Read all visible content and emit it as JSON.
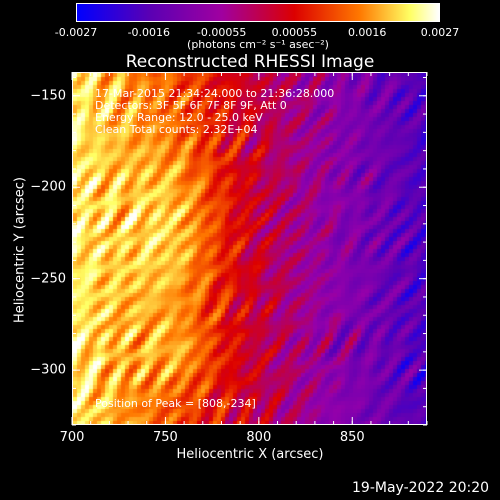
{
  "chart_data": {
    "type": "heatmap",
    "title": "Reconstructed RHESSI Image",
    "xlabel": "Heliocentric X (arcsec)",
    "ylabel": "Heliocentric Y (arcsec)",
    "xlim": [
      700,
      890
    ],
    "ylim": [
      -330,
      -137
    ],
    "xticks": [
      "700",
      "750",
      "800",
      "850"
    ],
    "xtick_values": [
      700,
      750,
      800,
      850
    ],
    "yticks": [
      "-150",
      "-200",
      "-250",
      "-300"
    ],
    "ytick_values": [
      -150,
      -200,
      -250,
      -300
    ],
    "colorbar": {
      "ticks": [
        "-0.0027",
        "-0.0016",
        "-0.00055",
        "0.00055",
        "0.0016",
        "0.0027"
      ],
      "range": [
        -0.0027,
        0.0027
      ],
      "units": "(photons cm⁻² s⁻¹ asec⁻²)",
      "colors": [
        "#0000ff",
        "#5a00b4",
        "#a000a0",
        "#dc0000",
        "#ff7800",
        "#ffff64",
        "#ffffff"
      ]
    },
    "annotations": [
      "17-Mar-2015 21:34:24.000 to 21:36:28.000",
      "Detectors: 3F 5F 6F 7F 8F 9F, Att 0",
      "Energy Range: 12.0 - 25.0 keV",
      "Clean     Total counts: 2.32E+04"
    ],
    "peak_label": "Position of Peak = [808,-234]",
    "peak": [
      808,
      -234
    ]
  },
  "timestamp": "19-May-2022 20:20"
}
